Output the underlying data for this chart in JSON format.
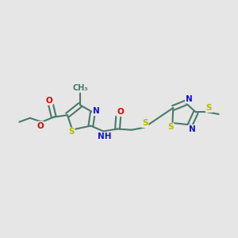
{
  "background_color": "#e6e6e6",
  "bond_color": "#4a7a6a",
  "bond_width": 1.5,
  "atom_colors": {
    "N": "#1010dd",
    "O": "#dd0000",
    "S": "#b8b800",
    "C": "#4a7a6a",
    "H": "#888888"
  },
  "font_size": 7.5,
  "fig_width": 3.0,
  "fig_height": 3.0,
  "dpi": 100,
  "xlim": [
    0,
    12
  ],
  "ylim": [
    0,
    10
  ]
}
